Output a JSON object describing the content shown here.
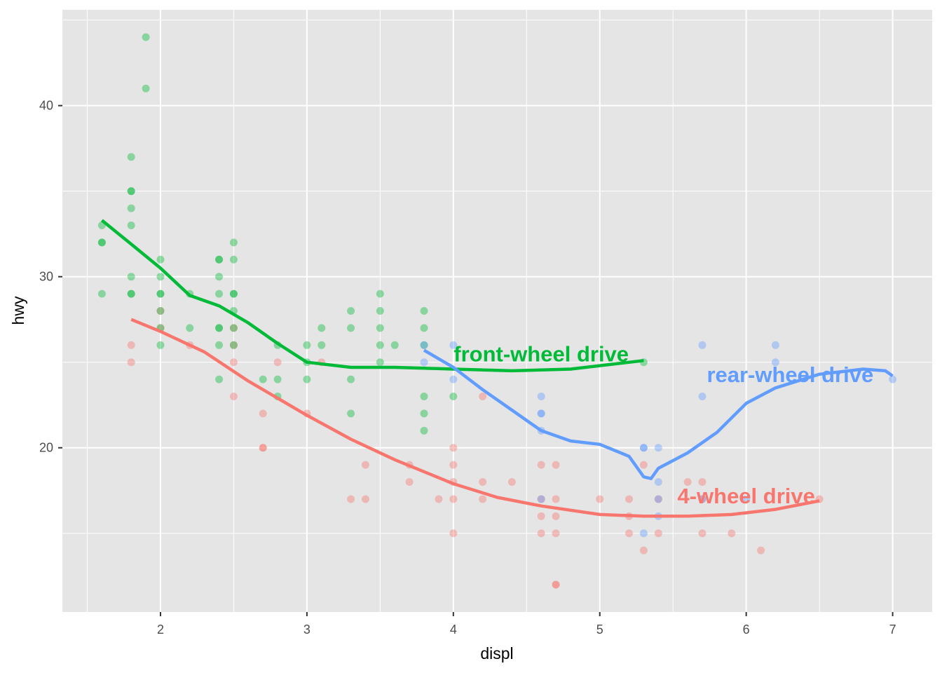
{
  "chart_data": {
    "type": "scatter",
    "title": "",
    "xlabel": "displ",
    "ylabel": "hwy",
    "xlim": [
      1.33,
      7.27
    ],
    "ylim": [
      10.4,
      45.6
    ],
    "x_ticks": [
      2,
      3,
      4,
      5,
      6,
      7
    ],
    "y_ticks": [
      20,
      30,
      40
    ],
    "grid": true,
    "legend": "none",
    "colors": {
      "4": "#F8766D",
      "f": "#00BA38",
      "r": "#619CFF"
    },
    "series": [
      {
        "key": "4",
        "label": "4-wheel drive",
        "label_pos": [
          6.0,
          17.2
        ],
        "points": [
          [
            1.8,
            26
          ],
          [
            1.8,
            25
          ],
          [
            2.0,
            28
          ],
          [
            2.0,
            27
          ],
          [
            2.2,
            26
          ],
          [
            2.5,
            27
          ],
          [
            2.5,
            26
          ],
          [
            2.5,
            25
          ],
          [
            2.5,
            23
          ],
          [
            2.7,
            22
          ],
          [
            2.7,
            20
          ],
          [
            2.7,
            20
          ],
          [
            2.8,
            25
          ],
          [
            3.0,
            22
          ],
          [
            3.1,
            25
          ],
          [
            3.3,
            17
          ],
          [
            3.4,
            19
          ],
          [
            3.4,
            17
          ],
          [
            3.7,
            19
          ],
          [
            3.7,
            18
          ],
          [
            3.9,
            17
          ],
          [
            4.0,
            20
          ],
          [
            4.0,
            19
          ],
          [
            4.0,
            18
          ],
          [
            4.0,
            17
          ],
          [
            4.0,
            15
          ],
          [
            4.2,
            23
          ],
          [
            4.2,
            18
          ],
          [
            4.2,
            17
          ],
          [
            4.4,
            18
          ],
          [
            4.6,
            19
          ],
          [
            4.6,
            17
          ],
          [
            4.6,
            16
          ],
          [
            4.6,
            15
          ],
          [
            4.7,
            19
          ],
          [
            4.7,
            17
          ],
          [
            4.7,
            16
          ],
          [
            4.7,
            15
          ],
          [
            4.7,
            12
          ],
          [
            4.7,
            12
          ],
          [
            5.0,
            17
          ],
          [
            5.2,
            17
          ],
          [
            5.2,
            16
          ],
          [
            5.2,
            15
          ],
          [
            5.3,
            19
          ],
          [
            5.3,
            14
          ],
          [
            5.4,
            17
          ],
          [
            5.4,
            15
          ],
          [
            5.6,
            18
          ],
          [
            5.7,
            18
          ],
          [
            5.7,
            17
          ],
          [
            5.7,
            15
          ],
          [
            5.9,
            15
          ],
          [
            6.1,
            14
          ],
          [
            6.5,
            17
          ]
        ],
        "smooth": [
          [
            1.8,
            27.5
          ],
          [
            2.0,
            26.8
          ],
          [
            2.3,
            25.6
          ],
          [
            2.6,
            23.9
          ],
          [
            2.8,
            22.9
          ],
          [
            3.0,
            21.9
          ],
          [
            3.3,
            20.5
          ],
          [
            3.6,
            19.3
          ],
          [
            4.0,
            17.9
          ],
          [
            4.3,
            17.1
          ],
          [
            4.6,
            16.6
          ],
          [
            5.0,
            16.1
          ],
          [
            5.3,
            16.0
          ],
          [
            5.6,
            16.0
          ],
          [
            5.9,
            16.1
          ],
          [
            6.2,
            16.4
          ],
          [
            6.5,
            16.9
          ]
        ]
      },
      {
        "key": "f",
        "label": "front-wheel drive",
        "label_pos": [
          4.6,
          25.5
        ],
        "points": [
          [
            1.6,
            33
          ],
          [
            1.6,
            32
          ],
          [
            1.6,
            32
          ],
          [
            1.6,
            29
          ],
          [
            1.8,
            37
          ],
          [
            1.8,
            35
          ],
          [
            1.8,
            35
          ],
          [
            1.8,
            34
          ],
          [
            1.8,
            33
          ],
          [
            1.8,
            30
          ],
          [
            1.8,
            29
          ],
          [
            1.8,
            29
          ],
          [
            1.9,
            44
          ],
          [
            1.9,
            41
          ],
          [
            2.0,
            31
          ],
          [
            2.0,
            30
          ],
          [
            2.0,
            29
          ],
          [
            2.0,
            29
          ],
          [
            2.0,
            28
          ],
          [
            2.0,
            27
          ],
          [
            2.0,
            26
          ],
          [
            2.2,
            29
          ],
          [
            2.2,
            27
          ],
          [
            2.4,
            31
          ],
          [
            2.4,
            31
          ],
          [
            2.4,
            30
          ],
          [
            2.4,
            29
          ],
          [
            2.4,
            27
          ],
          [
            2.4,
            27
          ],
          [
            2.4,
            26
          ],
          [
            2.4,
            24
          ],
          [
            2.5,
            32
          ],
          [
            2.5,
            31
          ],
          [
            2.5,
            29
          ],
          [
            2.5,
            29
          ],
          [
            2.5,
            28
          ],
          [
            2.5,
            27
          ],
          [
            2.5,
            26
          ],
          [
            2.8,
            26
          ],
          [
            2.8,
            24
          ],
          [
            2.8,
            23
          ],
          [
            2.7,
            24
          ],
          [
            3.0,
            26
          ],
          [
            3.0,
            25
          ],
          [
            3.0,
            24
          ],
          [
            3.1,
            27
          ],
          [
            3.1,
            26
          ],
          [
            3.3,
            28
          ],
          [
            3.3,
            27
          ],
          [
            3.3,
            24
          ],
          [
            3.3,
            22
          ],
          [
            3.5,
            29
          ],
          [
            3.5,
            28
          ],
          [
            3.5,
            27
          ],
          [
            3.5,
            26
          ],
          [
            3.5,
            25
          ],
          [
            3.6,
            26
          ],
          [
            3.8,
            28
          ],
          [
            3.8,
            27
          ],
          [
            3.8,
            26
          ],
          [
            3.8,
            23
          ],
          [
            3.8,
            22
          ],
          [
            3.8,
            21
          ],
          [
            4.0,
            23
          ],
          [
            5.3,
            25
          ]
        ],
        "smooth": [
          [
            1.6,
            33.3
          ],
          [
            1.8,
            31.9
          ],
          [
            2.0,
            30.5
          ],
          [
            2.2,
            28.9
          ],
          [
            2.4,
            28.3
          ],
          [
            2.6,
            27.3
          ],
          [
            2.8,
            26.1
          ],
          [
            3.0,
            25.0
          ],
          [
            3.3,
            24.7
          ],
          [
            3.6,
            24.7
          ],
          [
            4.0,
            24.6
          ],
          [
            4.4,
            24.5
          ],
          [
            4.8,
            24.6
          ],
          [
            5.3,
            25.1
          ]
        ]
      },
      {
        "key": "r",
        "label": "rear-wheel drive",
        "label_pos": [
          6.3,
          24.3
        ],
        "points": [
          [
            3.8,
            26
          ],
          [
            3.8,
            25
          ],
          [
            4.0,
            26
          ],
          [
            4.0,
            24
          ],
          [
            4.6,
            23
          ],
          [
            4.6,
            22
          ],
          [
            4.6,
            22
          ],
          [
            4.6,
            21
          ],
          [
            4.6,
            17
          ],
          [
            5.3,
            20
          ],
          [
            5.3,
            20
          ],
          [
            5.3,
            15
          ],
          [
            5.4,
            20
          ],
          [
            5.4,
            18
          ],
          [
            5.4,
            17
          ],
          [
            5.4,
            16
          ],
          [
            5.7,
            26
          ],
          [
            5.7,
            23
          ],
          [
            5.7,
            17
          ],
          [
            6.0,
            17
          ],
          [
            6.2,
            26
          ],
          [
            6.2,
            25
          ],
          [
            7.0,
            24
          ]
        ],
        "smooth": [
          [
            3.8,
            25.7
          ],
          [
            4.0,
            24.7
          ],
          [
            4.2,
            23.4
          ],
          [
            4.4,
            22.2
          ],
          [
            4.6,
            21.0
          ],
          [
            4.8,
            20.4
          ],
          [
            5.0,
            20.2
          ],
          [
            5.2,
            19.5
          ],
          [
            5.3,
            18.3
          ],
          [
            5.35,
            18.2
          ],
          [
            5.4,
            18.8
          ],
          [
            5.6,
            19.7
          ],
          [
            5.8,
            20.9
          ],
          [
            6.0,
            22.6
          ],
          [
            6.2,
            23.5
          ],
          [
            6.5,
            24.3
          ],
          [
            6.8,
            24.6
          ],
          [
            6.95,
            24.5
          ],
          [
            7.0,
            24.2
          ]
        ]
      }
    ]
  }
}
